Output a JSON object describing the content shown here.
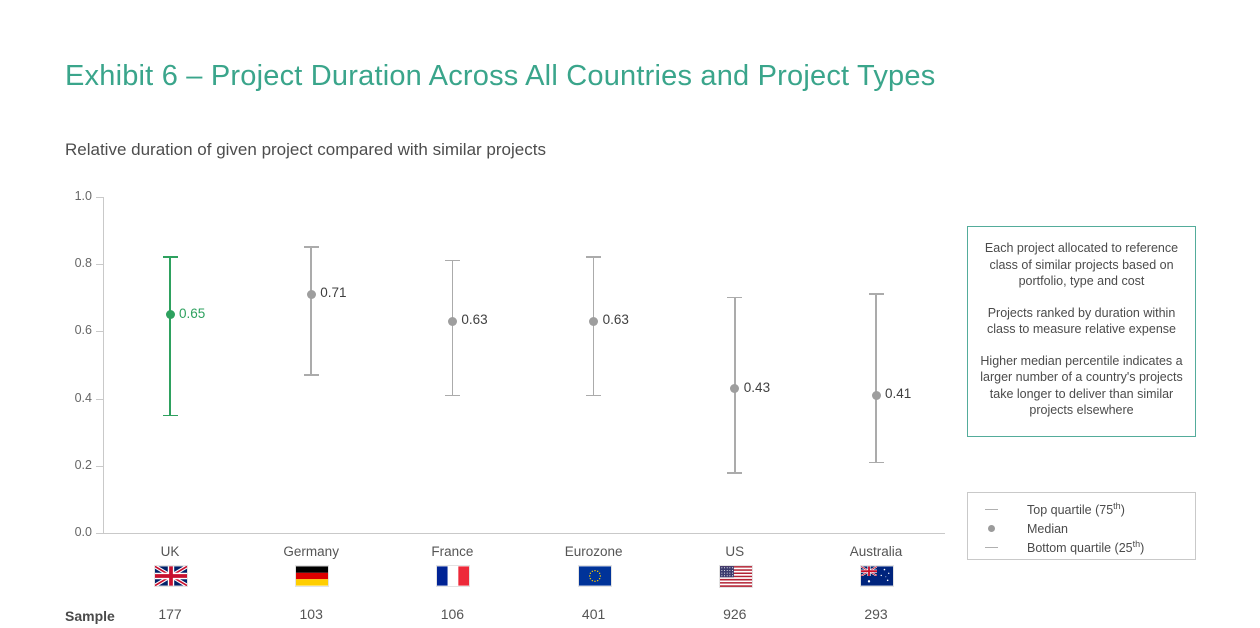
{
  "header": {
    "title": "Exhibit 6 – Project Duration Across All Countries and Project Types",
    "subtitle": "Relative duration of given project compared with similar projects"
  },
  "chart_data": {
    "type": "error-bar",
    "title": "Project Duration Across All Countries and Project Types",
    "subtitle": "Relative duration of given project compared with similar projects",
    "ylim": [
      0.0,
      1.0
    ],
    "y_ticks": [
      1.0,
      0.8,
      0.6,
      0.4,
      0.2,
      0.0
    ],
    "grid": false,
    "legend_position": "bottom-right",
    "categories": [
      "UK",
      "Germany",
      "France",
      "Eurozone",
      "US",
      "Australia"
    ],
    "series": [
      {
        "country": "UK",
        "flag": "uk",
        "median": 0.65,
        "median_label": "0.65",
        "top_quartile": 0.82,
        "bottom_quartile": 0.35,
        "sample": "177",
        "highlight": true
      },
      {
        "country": "Germany",
        "flag": "de",
        "median": 0.71,
        "median_label": "0.71",
        "top_quartile": 0.85,
        "bottom_quartile": 0.47,
        "sample": "103",
        "highlight": false
      },
      {
        "country": "France",
        "flag": "fr",
        "median": 0.63,
        "median_label": "0.63",
        "top_quartile": 0.81,
        "bottom_quartile": 0.41,
        "sample": "106",
        "highlight": false
      },
      {
        "country": "Eurozone",
        "flag": "eu",
        "median": 0.63,
        "median_label": "0.63",
        "top_quartile": 0.82,
        "bottom_quartile": 0.41,
        "sample": "401",
        "highlight": false
      },
      {
        "country": "US",
        "flag": "us",
        "median": 0.43,
        "median_label": "0.43",
        "top_quartile": 0.7,
        "bottom_quartile": 0.18,
        "sample": "926",
        "highlight": false
      },
      {
        "country": "Australia",
        "flag": "au",
        "median": 0.41,
        "median_label": "0.41",
        "top_quartile": 0.71,
        "bottom_quartile": 0.21,
        "sample": "293",
        "highlight": false
      }
    ],
    "sample_label": "Sample"
  },
  "notes": {
    "p1": "Each project allocated to reference class of similar projects based on portfolio, type and cost",
    "p2": "Projects ranked by duration within class to measure relative expense",
    "p3": "Higher median percentile indicates a larger number of a country's projects take longer to deliver than similar projects elsewhere"
  },
  "legend": {
    "items": [
      {
        "marker": "dash",
        "pre": "Top quartile (75",
        "sup": "th",
        "post": ")"
      },
      {
        "marker": "dot",
        "pre": "Median",
        "sup": "",
        "post": ""
      },
      {
        "marker": "dash",
        "pre": "Bottom quartile (25",
        "sup": "th",
        "post": ")"
      }
    ]
  },
  "colors": {
    "accent_teal": "#3AA58B",
    "highlight_green": "#2EA15F",
    "bar_gray": "#ABABAB",
    "marker_gray": "#9E9E9E",
    "value_text": "#3F3F3F",
    "text_dark": "#4A4A4A",
    "text_medium": "#595959",
    "box_border_teal": "#54AC9B",
    "box_border_gray": "#C9C9C9"
  }
}
